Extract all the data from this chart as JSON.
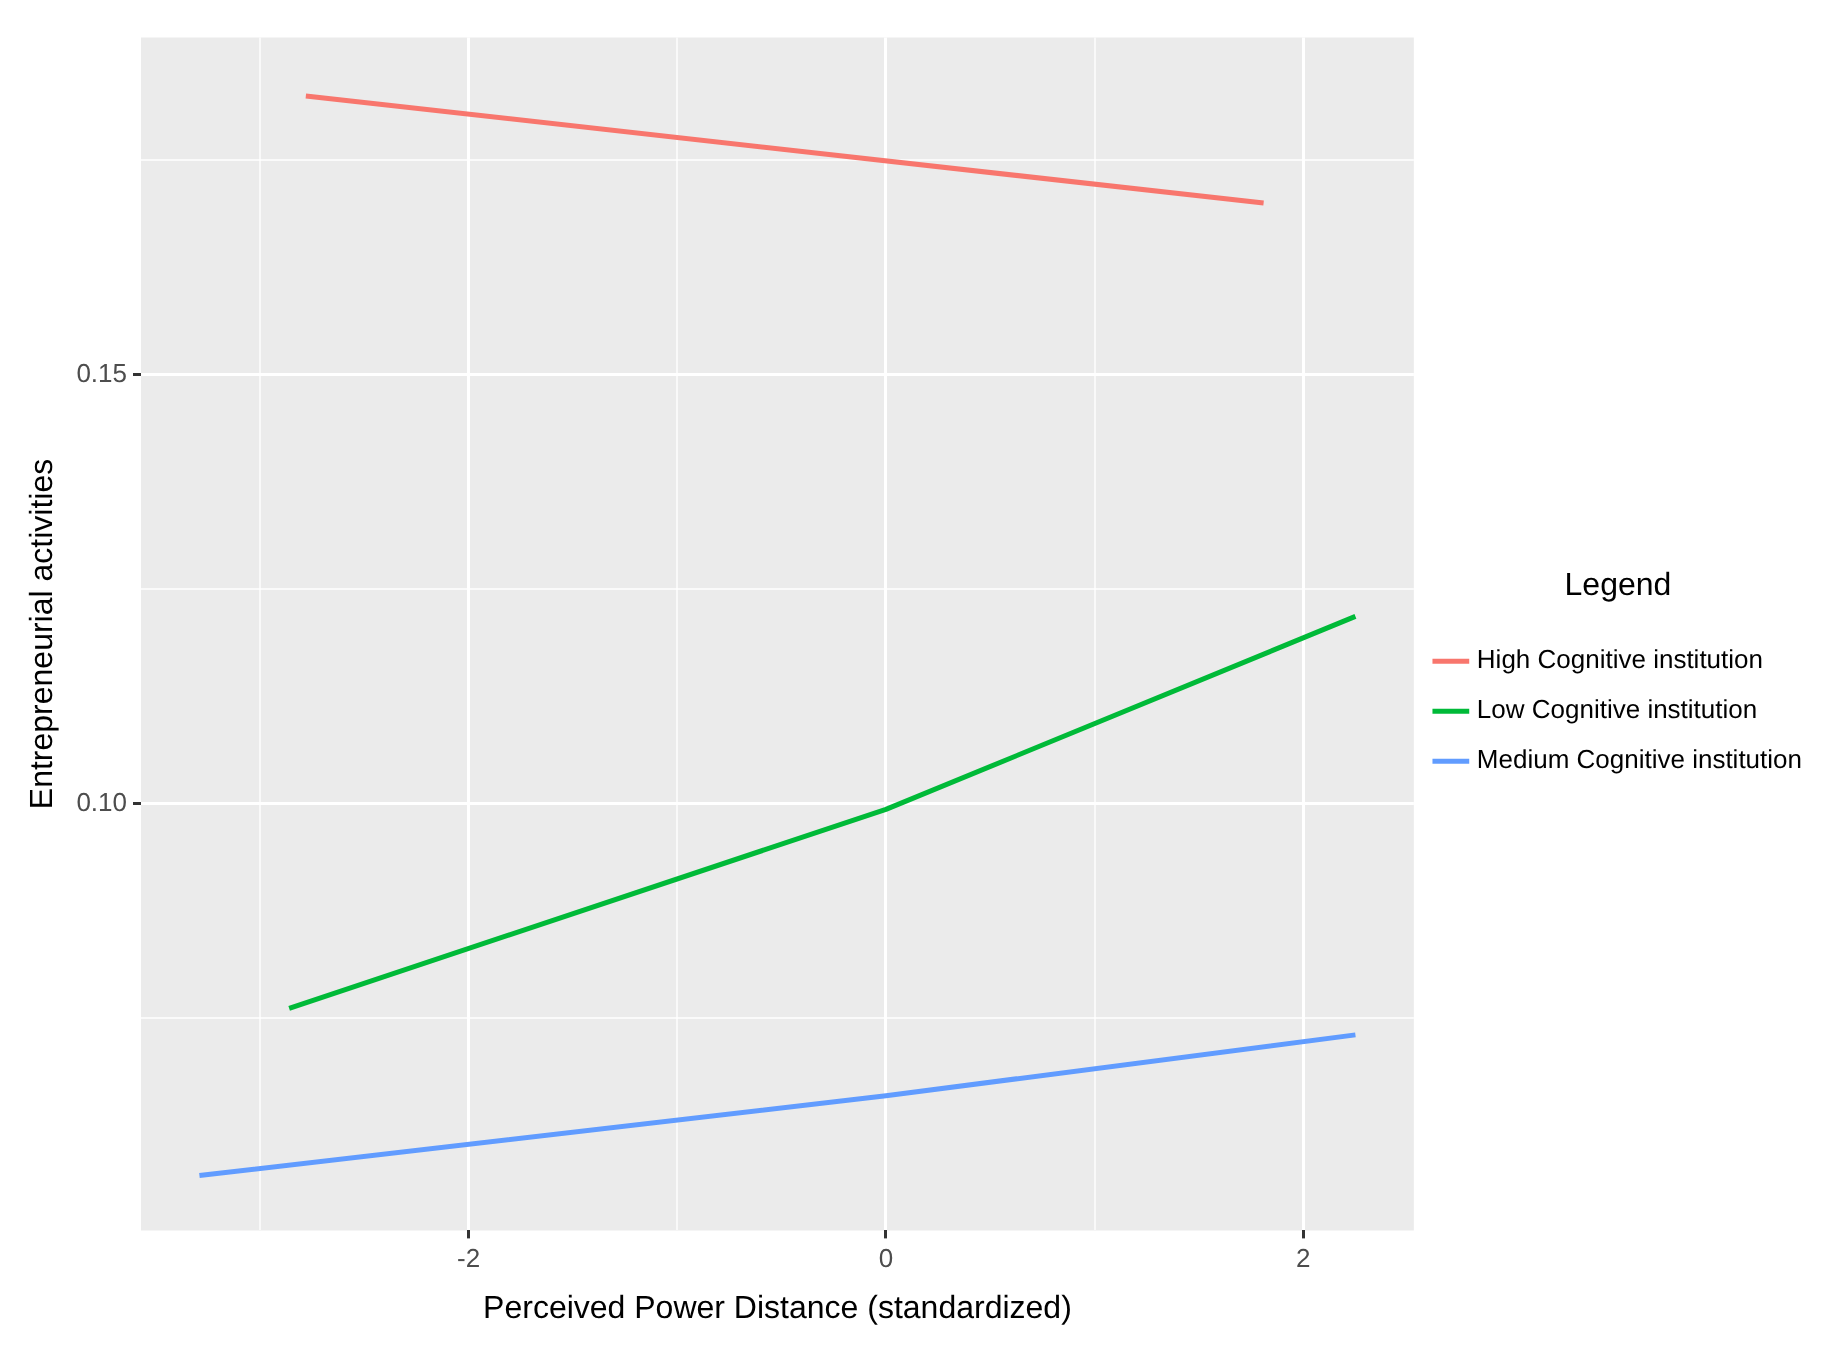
{
  "chart_data": {
    "type": "line",
    "xlabel": "Perceived Power Distance (standardized)",
    "ylabel": "Entrepreneurial activities",
    "legend_title": "Legend",
    "legend": "right",
    "grid": true,
    "marker": "none",
    "line_style": "solid",
    "xlim": [
      -3.57,
      2.53
    ],
    "ylim": [
      0.0502,
      0.1893
    ],
    "xticks": [
      {
        "value": -3,
        "label": null
      },
      -2,
      {
        "value": -1,
        "label": null
      },
      0,
      {
        "value": 1,
        "label": null
      },
      2
    ],
    "yticks": [
      {
        "value": 0.075,
        "label": null
      },
      {
        "value": 0.1,
        "label": "0.10"
      },
      {
        "value": 0.125,
        "label": null
      },
      {
        "value": 0.15,
        "label": "0.15"
      },
      {
        "value": 0.175,
        "label": null
      }
    ],
    "series": [
      {
        "name": "High Cognitive institution",
        "color": "#f8766d",
        "x": [
          -2.78,
          1.81
        ],
        "values": [
          0.1825,
          0.17
        ]
      },
      {
        "name": "Low Cognitive institution",
        "color": "#00ba38",
        "x": [
          -2.86,
          0,
          2.25
        ],
        "values": [
          0.0761,
          0.0993,
          0.1218
        ]
      },
      {
        "name": "Medium Cognitive institution",
        "color": "#619cff",
        "x": [
          -3.29,
          0,
          2.25
        ],
        "values": [
          0.0566,
          0.0659,
          0.073
        ]
      }
    ]
  }
}
